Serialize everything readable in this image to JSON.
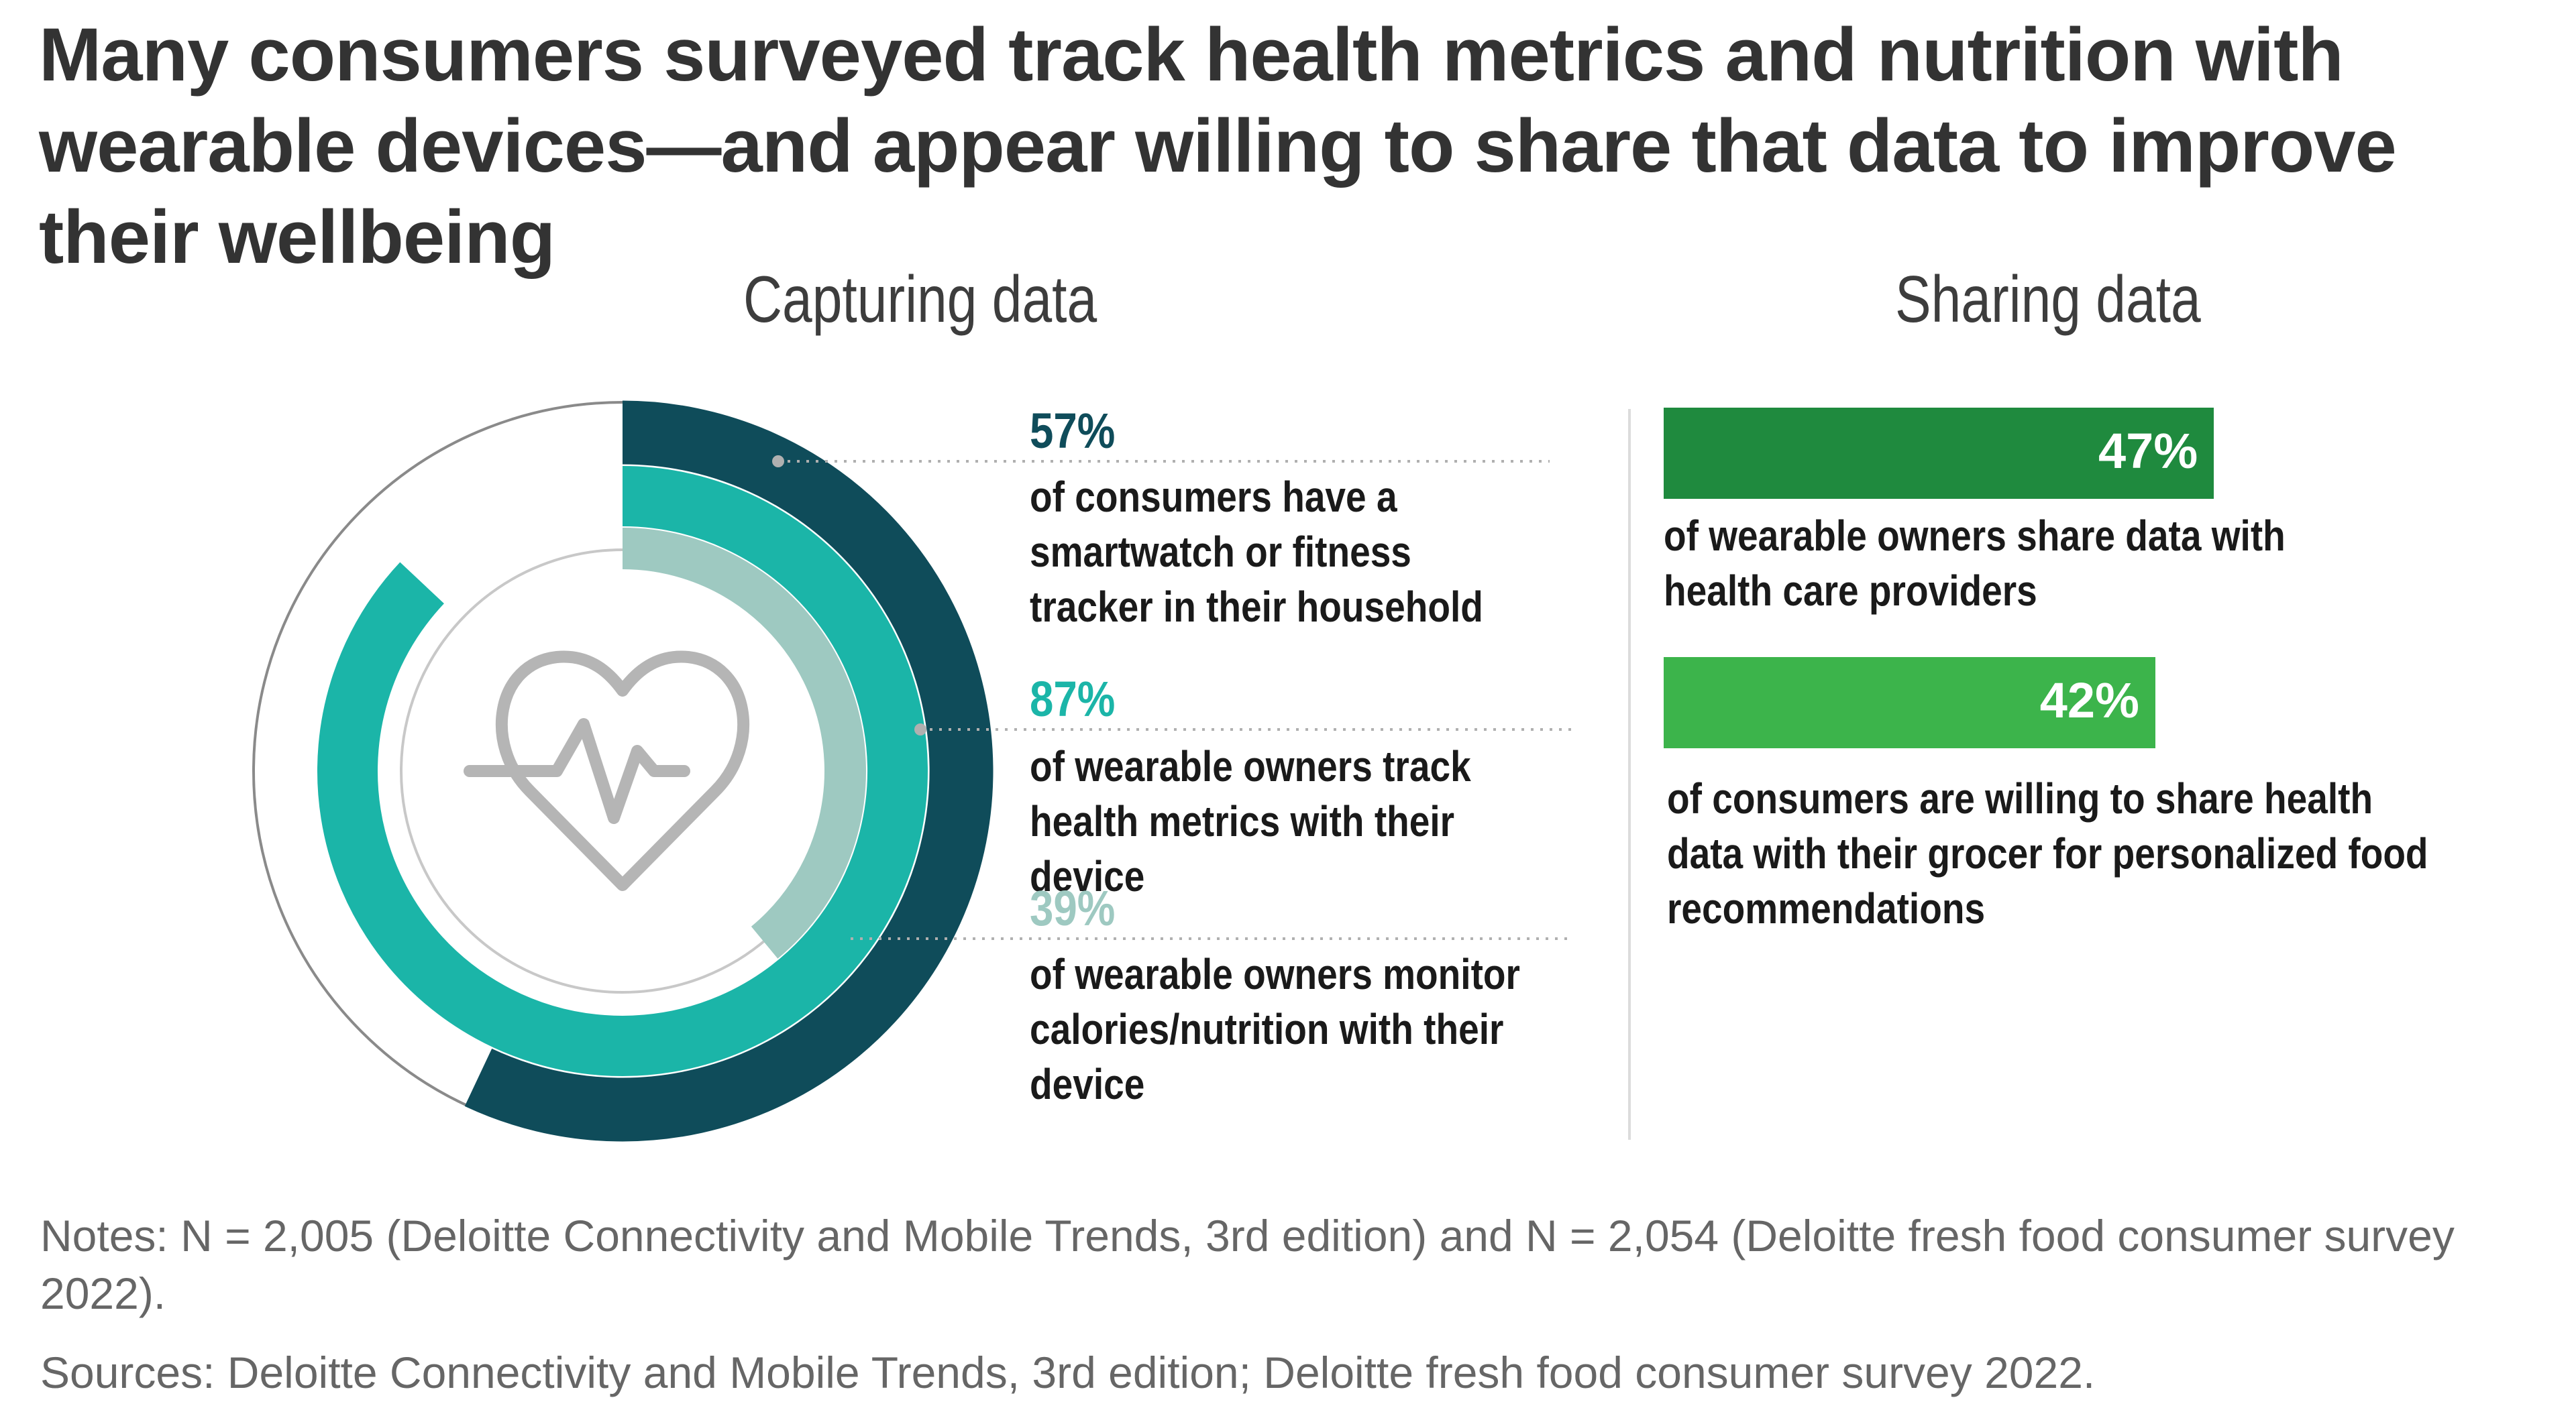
{
  "title": "Many consumers surveyed track health metrics and nutrition with wearable devices—and appear willing to share that data to improve their wellbeing",
  "capturing": {
    "heading": "Capturing data",
    "items": [
      {
        "value": 57,
        "label": "57%",
        "text": "of consumers have a smartwatch or fitness tracker in their household",
        "color": "#0f4c5a"
      },
      {
        "value": 87,
        "label": "87%",
        "text": "of wearable owners track health metrics with their device",
        "color": "#1bb5a8"
      },
      {
        "value": 39,
        "label": "39%",
        "text": "of wearable owners monitor calories/nutrition with their device",
        "color": "#9ec9c1"
      }
    ]
  },
  "sharing": {
    "heading": "Sharing data",
    "items": [
      {
        "value": 47,
        "label": "47%",
        "text": "of wearable owners share data with health care providers",
        "color": "#1f8a3e"
      },
      {
        "value": 42,
        "label": "42%",
        "text": "of consumers are willing to share health data with their grocer for personalized food recommendations",
        "color": "#3cb44b"
      }
    ]
  },
  "notes": "Notes: N = 2,005 (Deloitte Connectivity and Mobile Trends, 3rd edition) and N = 2,054 (Deloitte fresh food consumer survey 2022).",
  "sources": "Sources: Deloitte Connectivity and Mobile Trends, 3rd edition; Deloitte fresh food consumer survey 2022.",
  "chart_data": [
    {
      "type": "radial-bar",
      "title": "Capturing data",
      "categories": [
        "have a smartwatch or fitness tracker in household",
        "track health metrics with device",
        "monitor calories/nutrition with device"
      ],
      "values": [
        57,
        87,
        39
      ],
      "unit": "%"
    },
    {
      "type": "bar",
      "title": "Sharing data",
      "categories": [
        "share data with health care providers",
        "willing to share health data with grocer"
      ],
      "values": [
        47,
        42
      ],
      "unit": "%",
      "ylim": [
        0,
        100
      ]
    }
  ]
}
